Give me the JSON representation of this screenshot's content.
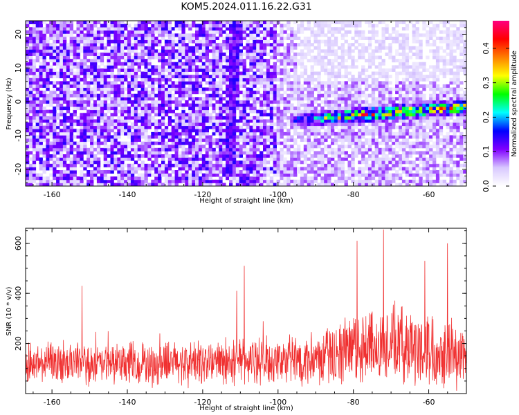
{
  "page": {
    "title": "KOM5.2024.011.16.22.G31"
  },
  "chart_data": [
    {
      "type": "heatmap",
      "xlabel": "Height of straight line (km)",
      "ylabel": "Frequency (Hz)",
      "xlim": [
        -167,
        -50
      ],
      "ylim": [
        -25,
        24
      ],
      "x_ticks": [
        -160,
        -140,
        -120,
        -100,
        -80,
        -60
      ],
      "x_tick_labels": [
        "-160",
        "-140",
        "-120",
        "-100",
        "-80",
        "-60"
      ],
      "y_ticks": [
        20,
        10,
        0,
        -10,
        -20
      ],
      "y_tick_labels": [
        "20",
        "10",
        "0",
        "-10",
        "-20"
      ],
      "colorbar": {
        "label": "Normalized spectral amplitude",
        "range": [
          0,
          0.48
        ],
        "ticks": [
          0,
          0.1,
          0.2,
          0.3,
          0.4
        ],
        "tick_labels": [
          "0.0",
          "0.1",
          "0.2",
          "0.3",
          "0.4"
        ],
        "colors": [
          "#ffffff",
          "#d8c8ff",
          "#8000ff",
          "#0000ff",
          "#00ffff",
          "#00ff00",
          "#ffff00",
          "#ff8000",
          "#ff0000",
          "#ff0080"
        ]
      },
      "features": [
        {
          "description_type": "band",
          "x_range": [
            -97,
            -50
          ],
          "y_start": -5.5,
          "y_end": -1.5,
          "peak_amplitude": 0.45
        },
        {
          "description_type": "vertical_streak",
          "x": -113,
          "y_range": [
            -22,
            24
          ],
          "peak_amplitude": 0.15
        }
      ]
    },
    {
      "type": "line",
      "xlabel": "Height of straight line (km)",
      "ylabel": "SNR (10 * v/v)",
      "xlim": [
        -167,
        -50
      ],
      "ylim": [
        0,
        660
      ],
      "x_ticks": [
        -160,
        -140,
        -120,
        -100,
        -80,
        -60
      ],
      "x_tick_labels": [
        "-160",
        "-140",
        "-120",
        "-100",
        "-80",
        "-60"
      ],
      "y_ticks": [
        200,
        400,
        600
      ],
      "y_tick_labels": [
        "200",
        "400",
        "600"
      ],
      "color": "#f03030",
      "envelope": [
        {
          "x": -167,
          "mean": 120,
          "spread": 90
        },
        {
          "x": -150,
          "mean": 115,
          "spread": 90
        },
        {
          "x": -130,
          "mean": 120,
          "spread": 100
        },
        {
          "x": -110,
          "mean": 130,
          "spread": 110
        },
        {
          "x": -100,
          "mean": 130,
          "spread": 110
        },
        {
          "x": -90,
          "mean": 140,
          "spread": 120
        },
        {
          "x": -82,
          "mean": 170,
          "spread": 150
        },
        {
          "x": -72,
          "mean": 200,
          "spread": 180
        },
        {
          "x": -60,
          "mean": 180,
          "spread": 170
        },
        {
          "x": -50,
          "mean": 150,
          "spread": 150
        }
      ],
      "peaks": [
        {
          "x": -152,
          "y": 430
        },
        {
          "x": -111,
          "y": 410
        },
        {
          "x": -109,
          "y": 510
        },
        {
          "x": -79,
          "y": 610
        },
        {
          "x": -72,
          "y": 655
        },
        {
          "x": -61,
          "y": 530
        },
        {
          "x": -55,
          "y": 600
        }
      ]
    }
  ]
}
